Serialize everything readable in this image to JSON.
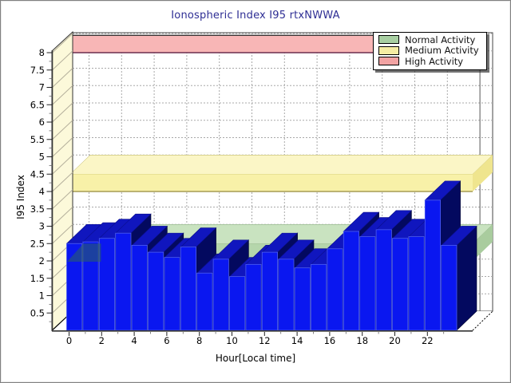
{
  "title": "Ionospheric Index I95 rtxNWWA",
  "legend": {
    "items": [
      {
        "label": "Normal Activity",
        "color": "#a8cfa2"
      },
      {
        "label": "Medium Activity",
        "color": "#f5eda3"
      },
      {
        "label": "High Activity",
        "color": "#f2a3a3"
      }
    ]
  },
  "y_axis": {
    "label": "I95 Index",
    "ticks": [
      0.5,
      1,
      1.5,
      2,
      2.5,
      3,
      3.5,
      4,
      4.5,
      5,
      5.5,
      6,
      6.5,
      7,
      7.5,
      8
    ]
  },
  "x_axis": {
    "label": "Hour[Local time]",
    "ticks": [
      0,
      2,
      4,
      6,
      8,
      10,
      12,
      14,
      16,
      18,
      20,
      22
    ]
  },
  "chart_data": {
    "type": "bar",
    "title": "Ionospheric Index I95 rtxNWWA",
    "xlabel": "Hour[Local time]",
    "ylabel": "I95 Index",
    "x": [
      0,
      1,
      2,
      3,
      4,
      5,
      6,
      7,
      8,
      9,
      10,
      11,
      12,
      13,
      14,
      15,
      16,
      17,
      18,
      19,
      20,
      21,
      22,
      23
    ],
    "values": [
      2.5,
      2.55,
      2.65,
      2.8,
      2.45,
      2.25,
      2.1,
      2.4,
      1.65,
      2.05,
      1.55,
      1.9,
      2.25,
      2.05,
      1.8,
      1.9,
      2.35,
      2.85,
      2.7,
      2.9,
      2.65,
      2.7,
      3.75,
      2.45
    ],
    "ylim": [
      0,
      8.5
    ],
    "grid": true,
    "legend_position": "top-right",
    "bands": [
      {
        "name": "Normal Activity",
        "range": [
          2.0,
          2.5
        ],
        "front": "#b5d6ab",
        "top": "#c9e3c0",
        "end": "#a9cc9e",
        "edge": "#57804f"
      },
      {
        "name": "Medium Activity",
        "range": [
          4.0,
          4.5
        ],
        "front": "#f8f1a8",
        "top": "#fbf6c6",
        "end": "#efe58e",
        "edge": "#958a3a"
      },
      {
        "name": "High Activity",
        "range": [
          8.0,
          8.5
        ],
        "front": "#f8b6b6",
        "top": "#f8b6b6",
        "end": "#f8b6b6",
        "edge": "#6b2f4f"
      }
    ]
  },
  "colors": {
    "bar_front": "#0a17f0",
    "bar_top": "#1016be",
    "bar_side": "#03095f",
    "bar_front_edge": "#4d5ef0",
    "wall": "#fcf9da",
    "wall_hatch": "#b5b09c",
    "back_wall": "#ffffff",
    "grid": "#a8a8a8",
    "axis": "#333333",
    "title": "#2e2e94",
    "normal_overlay": "rgba(45,105,80,0.5)"
  }
}
